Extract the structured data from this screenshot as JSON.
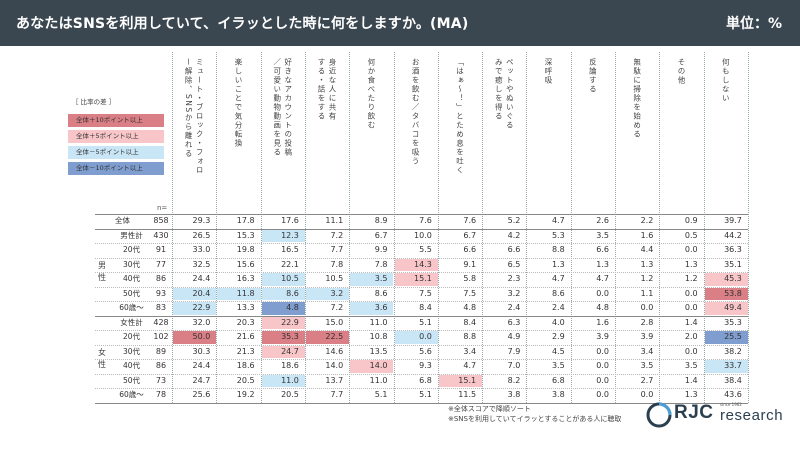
{
  "header": {
    "title": "あなたはSNSを利用していて、イラッとした時に何をしますか。(MA)",
    "unit": "単位：%"
  },
  "legend": {
    "title": "［ 比率の差 ］",
    "items": [
      {
        "label": "全体＋10ポイント以上",
        "color": "#d97f85"
      },
      {
        "label": "全体＋5ポイント以上",
        "color": "#f8c6c9"
      },
      {
        "label": "全体－5ポイント以上",
        "color": "#c9e6f7"
      },
      {
        "label": "全体－10ポイント以上",
        "color": "#7f9ecf"
      }
    ]
  },
  "n_label": "n=",
  "group_labels": {
    "male": "男性",
    "female": "女性"
  },
  "chart_data": {
    "type": "table",
    "columns": [
      "ミュート・ブロック・フォロー解除、SNSから離れる",
      "楽しいことで気分転換",
      "好きなアカウントの投稿／可愛い動物動画を見る",
      "身近な人に共有する・話をする",
      "何か食べたり飲む",
      "お酒を飲む／タバコを吸う",
      "「はぁ～！」とため息を吐く",
      "ペットやぬいぐるみで癒しを得る",
      "深呼吸",
      "反論する",
      "無駄に掃除を始める",
      "その他",
      "何もしない"
    ],
    "rows": [
      {
        "label": "全体",
        "n": "858",
        "values": [
          "29.3",
          "17.8",
          "17.6",
          "11.1",
          "8.9",
          "7.6",
          "7.6",
          "5.2",
          "4.7",
          "2.6",
          "2.2",
          "0.9",
          "39.7"
        ]
      },
      {
        "label": "男性計",
        "n": "430",
        "values": [
          "26.5",
          "15.3",
          "12.3",
          "7.2",
          "6.7",
          "10.0",
          "6.7",
          "4.2",
          "5.3",
          "3.5",
          "1.6",
          "0.5",
          "44.2"
        ]
      },
      {
        "label": "20代",
        "n": "91",
        "values": [
          "33.0",
          "19.8",
          "16.5",
          "7.7",
          "9.9",
          "5.5",
          "6.6",
          "6.6",
          "8.8",
          "6.6",
          "4.4",
          "0.0",
          "36.3"
        ]
      },
      {
        "label": "30代",
        "n": "77",
        "values": [
          "32.5",
          "15.6",
          "22.1",
          "7.8",
          "7.8",
          "14.3",
          "9.1",
          "6.5",
          "1.3",
          "1.3",
          "1.3",
          "1.3",
          "35.1"
        ]
      },
      {
        "label": "40代",
        "n": "86",
        "values": [
          "24.4",
          "16.3",
          "10.5",
          "10.5",
          "3.5",
          "15.1",
          "5.8",
          "2.3",
          "4.7",
          "4.7",
          "1.2",
          "1.2",
          "45.3"
        ]
      },
      {
        "label": "50代",
        "n": "93",
        "values": [
          "20.4",
          "11.8",
          "8.6",
          "3.2",
          "8.6",
          "7.5",
          "7.5",
          "3.2",
          "8.6",
          "0.0",
          "1.1",
          "0.0",
          "53.8"
        ]
      },
      {
        "label": "60歳～",
        "n": "83",
        "values": [
          "22.9",
          "13.3",
          "4.8",
          "7.2",
          "3.6",
          "8.4",
          "4.8",
          "2.4",
          "2.4",
          "4.8",
          "0.0",
          "0.0",
          "49.4"
        ]
      },
      {
        "label": "女性計",
        "n": "428",
        "values": [
          "32.0",
          "20.3",
          "22.9",
          "15.0",
          "11.0",
          "5.1",
          "8.4",
          "6.3",
          "4.0",
          "1.6",
          "2.8",
          "1.4",
          "35.3"
        ]
      },
      {
        "label": "20代",
        "n": "102",
        "values": [
          "50.0",
          "21.6",
          "35.3",
          "22.5",
          "10.8",
          "0.0",
          "8.8",
          "4.9",
          "2.9",
          "3.9",
          "3.9",
          "2.0",
          "25.5"
        ]
      },
      {
        "label": "30代",
        "n": "89",
        "values": [
          "30.3",
          "21.3",
          "24.7",
          "14.6",
          "13.5",
          "5.6",
          "3.4",
          "7.9",
          "4.5",
          "0.0",
          "3.4",
          "0.0",
          "38.2"
        ]
      },
      {
        "label": "40代",
        "n": "86",
        "values": [
          "24.4",
          "18.6",
          "18.6",
          "14.0",
          "14.0",
          "9.3",
          "4.7",
          "7.0",
          "3.5",
          "0.0",
          "3.5",
          "3.5",
          "33.7"
        ]
      },
      {
        "label": "50代",
        "n": "73",
        "values": [
          "24.7",
          "20.5",
          "11.0",
          "13.7",
          "11.0",
          "6.8",
          "15.1",
          "8.2",
          "6.8",
          "0.0",
          "2.7",
          "1.4",
          "38.4"
        ]
      },
      {
        "label": "60歳～",
        "n": "78",
        "values": [
          "25.6",
          "19.2",
          "20.5",
          "7.7",
          "5.1",
          "5.1",
          "11.5",
          "3.8",
          "3.8",
          "0.0",
          "0.0",
          "1.3",
          "43.6"
        ]
      }
    ],
    "highlight_rule": "difference from 全体: ≥+10 dark red, ≥+5 light pink, ≤-5 light blue, ≤-10 dark blue"
  },
  "notes": [
    "※全体スコアで降順ソート",
    "※SNSを利用していてイラッとすることがある人に聴取"
  ],
  "logo": {
    "rjc": "RJC",
    "research": "research",
    "since": "since 1962"
  }
}
